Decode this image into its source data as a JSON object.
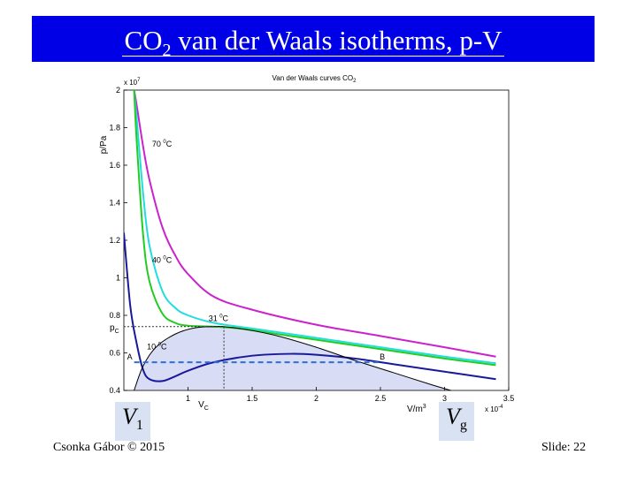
{
  "slide": {
    "title_main": "CO",
    "title_sub": "2",
    "title_rest": " van der Waals isotherms, p-V",
    "footer_author": "Csonka Gábor © 2015",
    "footer_slide": "Slide: 22",
    "v1_main": "V",
    "v1_sub": "1",
    "vg_main": "V",
    "vg_sub": "g"
  },
  "chart_data": {
    "type": "line",
    "title": "Van der Waals curves CO",
    "title_sub": "2",
    "xlabel": "V/m",
    "xlabel_sup": "3",
    "ylabel": "p/Pa",
    "x_multiplier": "x 10",
    "x_multiplier_exp": "-4",
    "y_multiplier": "x 10",
    "y_multiplier_exp": "7",
    "xlim": [
      0.5,
      3.5
    ],
    "ylim": [
      4000000,
      20000000
    ],
    "x_ticks": [
      1,
      1.5,
      2,
      2.5,
      3,
      3.5
    ],
    "x_tick_labels": [
      "1",
      "1.5",
      "2",
      "2.5",
      "3",
      "3.5"
    ],
    "y_ticks": [
      4000000,
      6000000,
      8000000,
      10000000,
      12000000,
      14000000,
      16000000,
      18000000,
      20000000
    ],
    "y_tick_labels": [
      "0.4",
      "0.6",
      "0.8",
      "1",
      "1.2",
      "1.4",
      "1.6",
      "1.8",
      "2"
    ],
    "xc_label": "V",
    "xc_label_sub": "C",
    "yc_label": "p",
    "yc_label_sub": "C",
    "critical_point": {
      "x": 1.28,
      "y": 7400000
    },
    "equal_area_line": {
      "y": 5500000,
      "x_from": 0.58,
      "x_to": 2.48
    },
    "point_labels": [
      {
        "text": "A",
        "x": 0.58,
        "y": 5500000
      },
      {
        "text": "B",
        "x": 2.48,
        "y": 5500000
      }
    ],
    "series": [
      {
        "temp": 70,
        "label": "70",
        "label_unit": "C",
        "color": "#cc22cc",
        "x": [
          0.58,
          0.6,
          0.65,
          0.7,
          0.8,
          0.9,
          1.0,
          1.2,
          1.5,
          2.0,
          2.5,
          3.0,
          3.4
        ],
        "y": [
          20000000,
          19200000,
          17000000,
          15200000,
          12700000,
          11200000,
          10200000,
          9000000,
          8300000,
          7500000,
          6900000,
          6300000,
          5800000
        ],
        "label_at": {
          "x": 0.72,
          "y": 17000000
        }
      },
      {
        "temp": 40,
        "label": "40",
        "label_unit": "C",
        "color": "#22dddd",
        "x": [
          0.58,
          0.6,
          0.65,
          0.7,
          0.8,
          0.9,
          1.0,
          1.2,
          1.5,
          2.0,
          2.5,
          3.0,
          3.4
        ],
        "y": [
          20000000,
          18500000,
          14500000,
          11700000,
          9300000,
          8400000,
          8000000,
          7600000,
          7300000,
          6800000,
          6300000,
          5800000,
          5450000
        ],
        "label_at": {
          "x": 0.72,
          "y": 10800000
        }
      },
      {
        "temp": 31,
        "label": "31",
        "label_unit": "C",
        "color": "#22cc22",
        "x": [
          0.58,
          0.6,
          0.65,
          0.7,
          0.8,
          0.9,
          1.0,
          1.2,
          1.4,
          1.7,
          2.0,
          2.5,
          3.0,
          3.4
        ],
        "y": [
          20000000,
          17300000,
          12300000,
          9800000,
          8100000,
          7600000,
          7450000,
          7400000,
          7300000,
          7000000,
          6700000,
          6200000,
          5700000,
          5350000
        ],
        "label_at": {
          "x": 1.16,
          "y": 7700000
        }
      },
      {
        "temp": 10,
        "label": "10",
        "label_unit": "C",
        "color": "#1a1a99",
        "x": [
          0.5,
          0.55,
          0.6,
          0.65,
          0.7,
          0.8,
          0.9,
          1.0,
          1.2,
          1.5,
          1.8,
          2.0,
          2.3,
          2.6,
          3.0,
          3.4
        ],
        "y": [
          12400000,
          8500000,
          6500000,
          5100000,
          4600000,
          4500000,
          4750000,
          5050000,
          5500000,
          5850000,
          5950000,
          5900000,
          5700000,
          5400000,
          5000000,
          4600000
        ],
        "label_at": {
          "x": 0.68,
          "y": 6200000
        }
      }
    ],
    "coexistence_curve": {
      "color": "#000000",
      "fill": "#d8dcf5",
      "x": [
        0.58,
        0.65,
        0.75,
        0.9,
        1.05,
        1.2,
        1.28,
        1.45,
        1.7,
        2.0,
        2.3,
        2.6,
        2.9,
        3.05
      ],
      "y": [
        4000000,
        5300000,
        6300000,
        7000000,
        7330000,
        7400000,
        7400000,
        7250000,
        6900000,
        6300000,
        5600000,
        4950000,
        4300000,
        4000000
      ]
    }
  }
}
